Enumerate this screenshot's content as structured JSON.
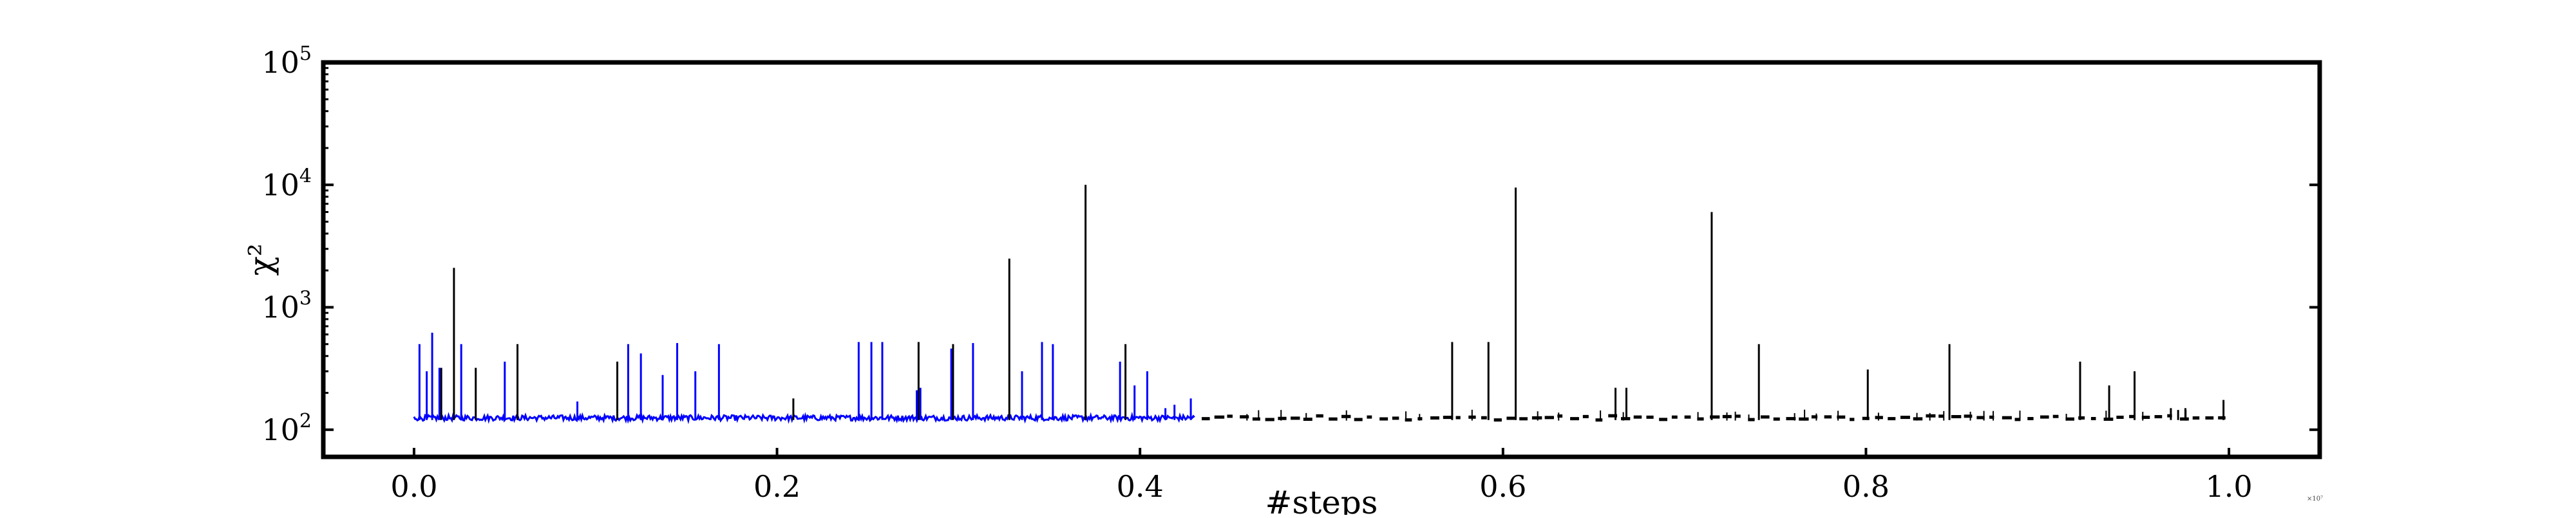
{
  "chart_data": {
    "type": "line",
    "title": "",
    "xlabel": "#steps",
    "ylabel": "χ²",
    "x_scale_factor_label": "×10⁷",
    "yscale": "log",
    "xlim": [
      -0.05,
      1.05
    ],
    "ylim": [
      60,
      100000
    ],
    "grid": false,
    "legend": "none",
    "x_ticks": [
      0.0,
      0.2,
      0.4,
      0.6,
      0.8,
      1.0
    ],
    "x_tick_labels": [
      "0.0",
      "0.2",
      "0.4",
      "0.6",
      "0.8",
      "1.0"
    ],
    "y_ticks": [
      100,
      1000,
      10000,
      100000
    ],
    "y_tick_labels": [
      {
        "base": "10",
        "exp": "2"
      },
      {
        "base": "10",
        "exp": "3"
      },
      {
        "base": "10",
        "exp": "4"
      },
      {
        "base": "10",
        "exp": "5"
      }
    ],
    "baseline": 125,
    "series": [
      {
        "color": "#0000ff",
        "x_range": [
          0.0,
          0.43
        ],
        "line_style": "solid",
        "spikes": [
          {
            "x": 0.003,
            "y": 500
          },
          {
            "x": 0.007,
            "y": 300
          },
          {
            "x": 0.01,
            "y": 620
          },
          {
            "x": 0.014,
            "y": 320
          },
          {
            "x": 0.026,
            "y": 500
          },
          {
            "x": 0.05,
            "y": 360
          },
          {
            "x": 0.09,
            "y": 170
          },
          {
            "x": 0.118,
            "y": 500
          },
          {
            "x": 0.125,
            "y": 420
          },
          {
            "x": 0.137,
            "y": 280
          },
          {
            "x": 0.145,
            "y": 510
          },
          {
            "x": 0.155,
            "y": 300
          },
          {
            "x": 0.168,
            "y": 500
          },
          {
            "x": 0.245,
            "y": 520
          },
          {
            "x": 0.252,
            "y": 520
          },
          {
            "x": 0.258,
            "y": 520
          },
          {
            "x": 0.277,
            "y": 210
          },
          {
            "x": 0.279,
            "y": 220
          },
          {
            "x": 0.296,
            "y": 460
          },
          {
            "x": 0.308,
            "y": 510
          },
          {
            "x": 0.335,
            "y": 300
          },
          {
            "x": 0.346,
            "y": 520
          },
          {
            "x": 0.352,
            "y": 500
          },
          {
            "x": 0.389,
            "y": 360
          },
          {
            "x": 0.397,
            "y": 230
          },
          {
            "x": 0.404,
            "y": 300
          },
          {
            "x": 0.414,
            "y": 150
          },
          {
            "x": 0.419,
            "y": 160
          },
          {
            "x": 0.428,
            "y": 180
          }
        ]
      },
      {
        "color": "#000000",
        "x_range": [
          0.0,
          1.0
        ],
        "line_style": "dashed-after-blue",
        "spikes": [
          {
            "x": 0.022,
            "y": 2100
          },
          {
            "x": 0.015,
            "y": 320
          },
          {
            "x": 0.034,
            "y": 320
          },
          {
            "x": 0.057,
            "y": 500
          },
          {
            "x": 0.112,
            "y": 360
          },
          {
            "x": 0.209,
            "y": 180
          },
          {
            "x": 0.278,
            "y": 520
          },
          {
            "x": 0.297,
            "y": 500
          },
          {
            "x": 0.328,
            "y": 2500
          },
          {
            "x": 0.37,
            "y": 10000
          },
          {
            "x": 0.392,
            "y": 500
          },
          {
            "x": 0.572,
            "y": 520
          },
          {
            "x": 0.592,
            "y": 520
          },
          {
            "x": 0.607,
            "y": 9500
          },
          {
            "x": 0.662,
            "y": 220
          },
          {
            "x": 0.668,
            "y": 220
          },
          {
            "x": 0.715,
            "y": 6000
          },
          {
            "x": 0.741,
            "y": 500
          },
          {
            "x": 0.801,
            "y": 310
          },
          {
            "x": 0.846,
            "y": 500
          },
          {
            "x": 0.918,
            "y": 360
          },
          {
            "x": 0.934,
            "y": 230
          },
          {
            "x": 0.948,
            "y": 300
          },
          {
            "x": 0.968,
            "y": 150
          },
          {
            "x": 0.972,
            "y": 145
          },
          {
            "x": 0.976,
            "y": 150
          },
          {
            "x": 0.997,
            "y": 175
          }
        ]
      }
    ]
  }
}
